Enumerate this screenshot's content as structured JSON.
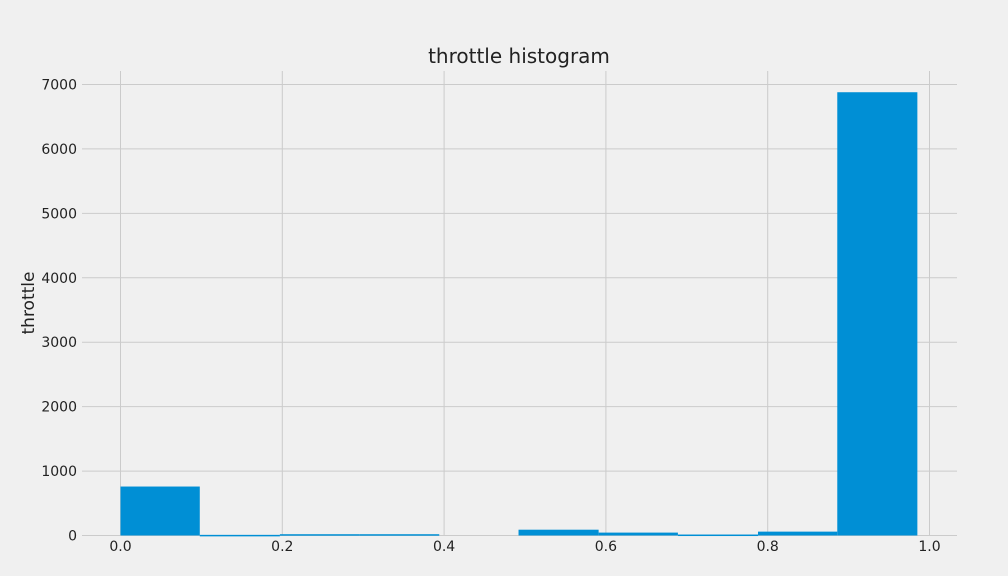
{
  "chart_data": {
    "type": "bar",
    "title": "throttle histogram",
    "xlabel": "",
    "ylabel": "throttle",
    "xlim": [
      0.0,
      1.0
    ],
    "ylim": [
      0,
      7000
    ],
    "x_ticks": [
      "0.0",
      "0.2",
      "0.4",
      "0.6",
      "0.8",
      "1.0"
    ],
    "y_ticks": [
      "0",
      "1000",
      "2000",
      "3000",
      "4000",
      "5000",
      "6000",
      "7000"
    ],
    "bins": [
      {
        "start": 0.0,
        "end": 0.098,
        "value": 760
      },
      {
        "start": 0.098,
        "end": 0.197,
        "value": 10
      },
      {
        "start": 0.197,
        "end": 0.295,
        "value": 20
      },
      {
        "start": 0.295,
        "end": 0.394,
        "value": 20
      },
      {
        "start": 0.394,
        "end": 0.492,
        "value": 0
      },
      {
        "start": 0.492,
        "end": 0.591,
        "value": 90
      },
      {
        "start": 0.591,
        "end": 0.689,
        "value": 45
      },
      {
        "start": 0.689,
        "end": 0.788,
        "value": 15
      },
      {
        "start": 0.788,
        "end": 0.886,
        "value": 60
      },
      {
        "start": 0.886,
        "end": 0.985,
        "value": 6880
      }
    ],
    "grid": true,
    "bar_color": "#008fd5",
    "grid_color": "#cbcbcb",
    "background_color": "#f0f0f0"
  }
}
